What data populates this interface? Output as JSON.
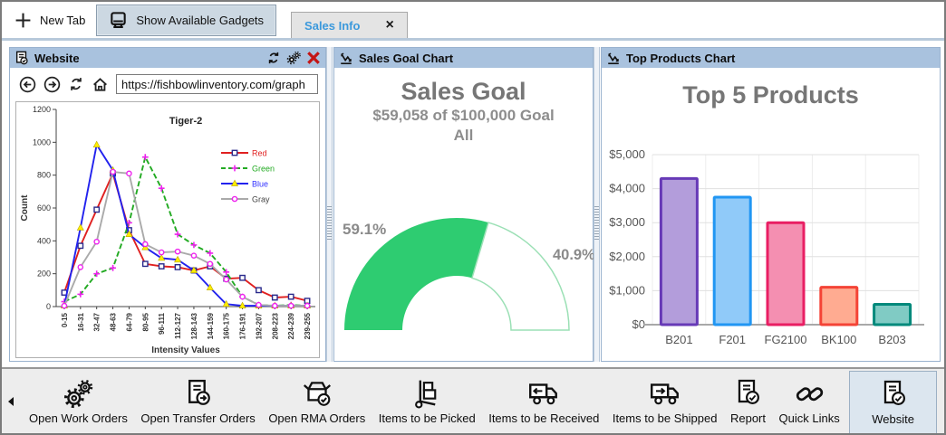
{
  "tab_bar": {
    "new_tab": "New Tab",
    "show_available_gadgets": "Show Available Gadgets",
    "active_tab": "Sales Info",
    "close_glyph": "×"
  },
  "website_panel": {
    "title": "Website",
    "url": "https://fishbowlinventory.com/graph"
  },
  "sales_goal_panel": {
    "title": "Sales Goal Chart",
    "heading": "Sales Goal",
    "subheading": "$59,058 of $100,000 Goal",
    "scope": "All"
  },
  "top_products_panel": {
    "title": "Top Products Chart"
  },
  "toolbar": {
    "items": [
      {
        "label": "Open Work Orders",
        "icon": "work-orders-gears-icon",
        "selected": false
      },
      {
        "label": "Open Transfer Orders",
        "icon": "transfer-order-icon",
        "selected": false
      },
      {
        "label": "Open RMA Orders",
        "icon": "rma-box-check-icon",
        "selected": false
      },
      {
        "label": "Items to be Picked",
        "icon": "hand-truck-icon",
        "selected": false
      },
      {
        "label": "Items to be Received",
        "icon": "truck-receive-icon",
        "selected": false
      },
      {
        "label": "Items to be Shipped",
        "icon": "truck-ship-icon",
        "selected": false
      },
      {
        "label": "Report",
        "icon": "report-check-icon",
        "selected": false
      },
      {
        "label": "Quick Links",
        "icon": "chain-links-icon",
        "selected": false
      },
      {
        "label": "Website",
        "icon": "website-doc-icon",
        "selected": true
      }
    ]
  },
  "colors": {
    "panel_header": "#a9c2de",
    "gauge_green": "#2ecc71",
    "gauge_outline": "#9be0b5",
    "tab_accent_blue": "#3b99dc"
  },
  "chart_data": [
    {
      "type": "line",
      "title": "Tiger-2",
      "xlabel": "Intensity Values",
      "ylabel": "Count",
      "ylim": [
        0,
        1200
      ],
      "ytick_step": 200,
      "legend_position": "right",
      "categories": [
        "0-15",
        "16-31",
        "32-47",
        "48-63",
        "64-79",
        "80-95",
        "96-111",
        "112-127",
        "128-143",
        "144-159",
        "160-175",
        "176-191",
        "192-207",
        "208-223",
        "224-239",
        "239-255"
      ],
      "series": [
        {
          "name": "Red",
          "color": "#e02020",
          "label_color": "#e02020",
          "marker": "square",
          "marker_color": "#2a2a8c",
          "dash": false,
          "values": [
            85,
            370,
            590,
            810,
            465,
            260,
            245,
            240,
            220,
            245,
            170,
            175,
            100,
            55,
            60,
            35
          ]
        },
        {
          "name": "Green",
          "color": "#22aa22",
          "label_color": "#22aa22",
          "marker": "plus",
          "marker_color": "#ee22ee",
          "dash": true,
          "values": [
            30,
            75,
            200,
            235,
            510,
            910,
            720,
            440,
            375,
            325,
            210,
            60,
            10,
            5,
            10,
            5
          ]
        },
        {
          "name": "Blue",
          "color": "#2222ee",
          "label_color": "#3333ff",
          "marker": "triangle",
          "marker_color": "#ffee00",
          "dash": false,
          "values": [
            5,
            480,
            985,
            830,
            440,
            360,
            295,
            285,
            220,
            115,
            15,
            5,
            5,
            5,
            5,
            5
          ]
        },
        {
          "name": "Gray",
          "color": "#aaaaaa",
          "label_color": "#444444",
          "marker": "circle",
          "marker_color": "#ee22ee",
          "dash": false,
          "values": [
            5,
            240,
            395,
            820,
            810,
            380,
            330,
            335,
            310,
            260,
            165,
            60,
            10,
            5,
            5,
            5
          ]
        }
      ]
    },
    {
      "type": "gauge",
      "percent": 59.1,
      "segments": [
        {
          "label": "59.1%",
          "value": 59.1,
          "color": "#2ecc71"
        },
        {
          "label": "40.9%",
          "value": 40.9,
          "color": "#ffffff"
        }
      ]
    },
    {
      "type": "bar",
      "title": "Top 5 Products",
      "categories": [
        "B201",
        "F201",
        "FG2100",
        "BK100",
        "B203"
      ],
      "values": [
        4300,
        3750,
        3000,
        1100,
        600
      ],
      "ylim": [
        0,
        5000
      ],
      "ytick_step": 1000,
      "ytick_labels": [
        "$0",
        "$1,000",
        "$2,000",
        "$3,000",
        "$4,000",
        "$5,000"
      ],
      "bar_colors": [
        {
          "fill": "#b39ddb",
          "stroke": "#673ab7"
        },
        {
          "fill": "#90caf9",
          "stroke": "#2196f3"
        },
        {
          "fill": "#f48fb1",
          "stroke": "#e91e63"
        },
        {
          "fill": "#ffab91",
          "stroke": "#f44336"
        },
        {
          "fill": "#80cbc4",
          "stroke": "#00897b"
        }
      ]
    }
  ]
}
